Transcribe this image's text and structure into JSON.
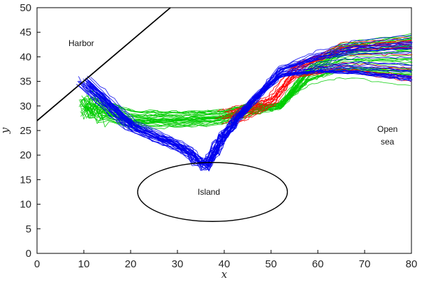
{
  "chart_data": {
    "type": "line",
    "title": "",
    "xlabel": "x",
    "ylabel": "y",
    "xlim": [
      0,
      80
    ],
    "ylim": [
      0,
      50
    ],
    "xticks": [
      0,
      10,
      20,
      30,
      40,
      50,
      60,
      70,
      80
    ],
    "yticks": [
      0,
      5,
      10,
      15,
      20,
      25,
      30,
      35,
      40,
      45,
      50
    ],
    "grid": false,
    "legend": "none",
    "series": [
      {
        "color": "#00cc00",
        "count": 34,
        "start_anchor": [
          9.5,
          30.5
        ],
        "start_spread": [
          2.0,
          3.5
        ],
        "waypoints": [
          [
            10.0,
            30.0
          ],
          [
            20.0,
            27.0
          ],
          [
            30.0,
            27.0
          ],
          [
            40.0,
            27.5
          ],
          [
            45.0,
            29.0
          ],
          [
            52.0,
            30.0
          ],
          [
            58.0,
            36.0
          ],
          [
            65.0,
            39.0
          ],
          [
            80.0,
            39.0
          ]
        ],
        "end_range": [
          34.0,
          44.5
        ],
        "sample_count": 85,
        "jitter": 0.22
      },
      {
        "color": "#ff0000",
        "count": 16,
        "start_anchor": [
          40.0,
          28.0
        ],
        "start_spread": [
          6.0,
          4.0
        ],
        "waypoints": [
          [
            40.0,
            27.5
          ],
          [
            45.0,
            29.0
          ],
          [
            50.0,
            31.0
          ],
          [
            55.0,
            37.0
          ],
          [
            65.0,
            40.0
          ],
          [
            80.0,
            40.0
          ]
        ],
        "end_range": [
          35.0,
          44.5
        ],
        "sample_count": 80,
        "jitter": 0.2
      },
      {
        "color": "#0000ee",
        "count": 32,
        "start_anchor": [
          10.0,
          35.0
        ],
        "start_spread": [
          3.0,
          2.5
        ],
        "waypoints": [
          [
            10.0,
            35.0
          ],
          [
            20.0,
            26.0
          ],
          [
            30.0,
            22.0
          ],
          [
            36.0,
            18.5
          ],
          [
            40.0,
            25.0
          ],
          [
            46.0,
            31.0
          ],
          [
            52.0,
            37.0
          ],
          [
            60.0,
            39.0
          ],
          [
            68.0,
            40.0
          ],
          [
            80.0,
            40.0
          ]
        ],
        "end_range": [
          35.0,
          44.5
        ],
        "sample_count": 90,
        "jitter": 0.18
      }
    ],
    "annotations": {
      "harbor_label": "Harbor",
      "open_sea_label_line1": "Open",
      "open_sea_label_line2": "sea",
      "island_label": "Island"
    },
    "harbor_line": {
      "from": [
        0.0,
        27.0
      ],
      "to": [
        28.5,
        50.0
      ]
    },
    "island": {
      "center": [
        37.5,
        12.5
      ],
      "rx": 16.0,
      "ry": 6.0
    },
    "colors": {
      "axis": "#000000",
      "background": "#ffffff"
    }
  }
}
